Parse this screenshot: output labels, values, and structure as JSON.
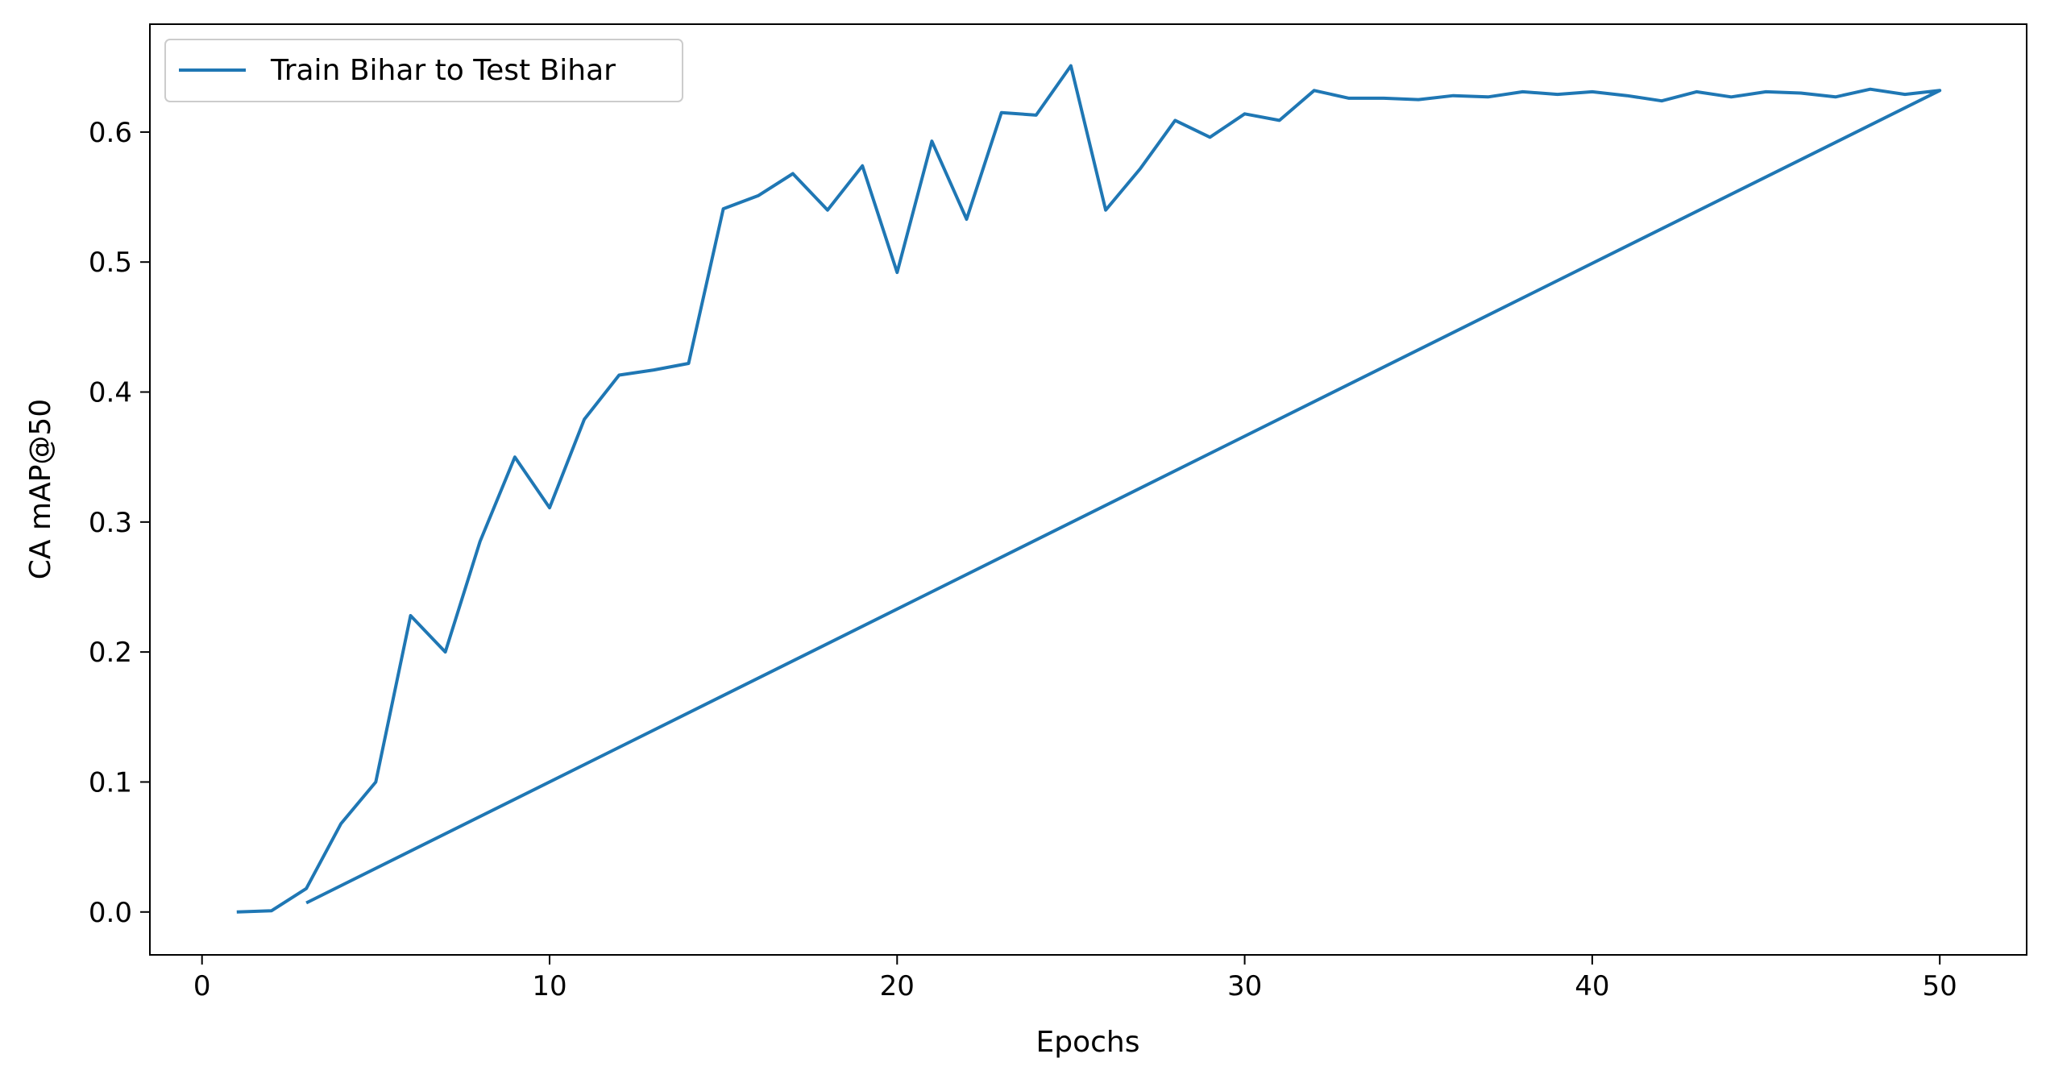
{
  "chart_data": {
    "type": "line",
    "title": "",
    "xlabel": "Epochs",
    "ylabel": "CA mAP@50",
    "xlim": [
      -1.5,
      52.5
    ],
    "ylim": [
      -0.033,
      0.683
    ],
    "xticks": [
      0,
      10,
      20,
      30,
      40,
      50
    ],
    "yticks": [
      0.0,
      0.1,
      0.2,
      0.3,
      0.4,
      0.5,
      0.6
    ],
    "xtick_labels": [
      "0",
      "10",
      "20",
      "30",
      "40",
      "50"
    ],
    "ytick_labels": [
      "0.0",
      "0.1",
      "0.2",
      "0.3",
      "0.4",
      "0.5",
      "0.6"
    ],
    "grid": false,
    "legend_position": "top-left",
    "color": "#1f77b4",
    "series": [
      {
        "name": "Train Bihar to Test Bihar",
        "x": [
          1,
          2,
          3,
          4,
          5,
          6,
          7,
          8,
          9,
          10,
          11,
          12,
          13,
          14,
          15,
          16,
          17,
          18,
          19,
          20,
          21,
          22,
          23,
          24,
          25,
          26,
          27,
          28,
          29,
          30,
          31,
          32,
          33,
          34,
          35,
          36,
          37,
          38,
          39,
          40,
          41,
          42,
          43,
          44,
          45,
          46,
          47,
          48,
          49,
          50,
          3
        ],
        "y": [
          0.0,
          0.001,
          0.018,
          0.068,
          0.1,
          0.228,
          0.2,
          0.285,
          0.35,
          0.311,
          0.379,
          0.413,
          0.417,
          0.422,
          0.541,
          0.551,
          0.568,
          0.54,
          0.574,
          0.492,
          0.593,
          0.533,
          0.615,
          0.613,
          0.651,
          0.54,
          0.572,
          0.609,
          0.596,
          0.614,
          0.609,
          0.632,
          0.626,
          0.626,
          0.625,
          0.628,
          0.627,
          0.631,
          0.629,
          0.631,
          0.628,
          0.624,
          0.631,
          0.627,
          0.631,
          0.63,
          0.627,
          0.633,
          0.629,
          0.632,
          0.007
        ]
      }
    ]
  }
}
